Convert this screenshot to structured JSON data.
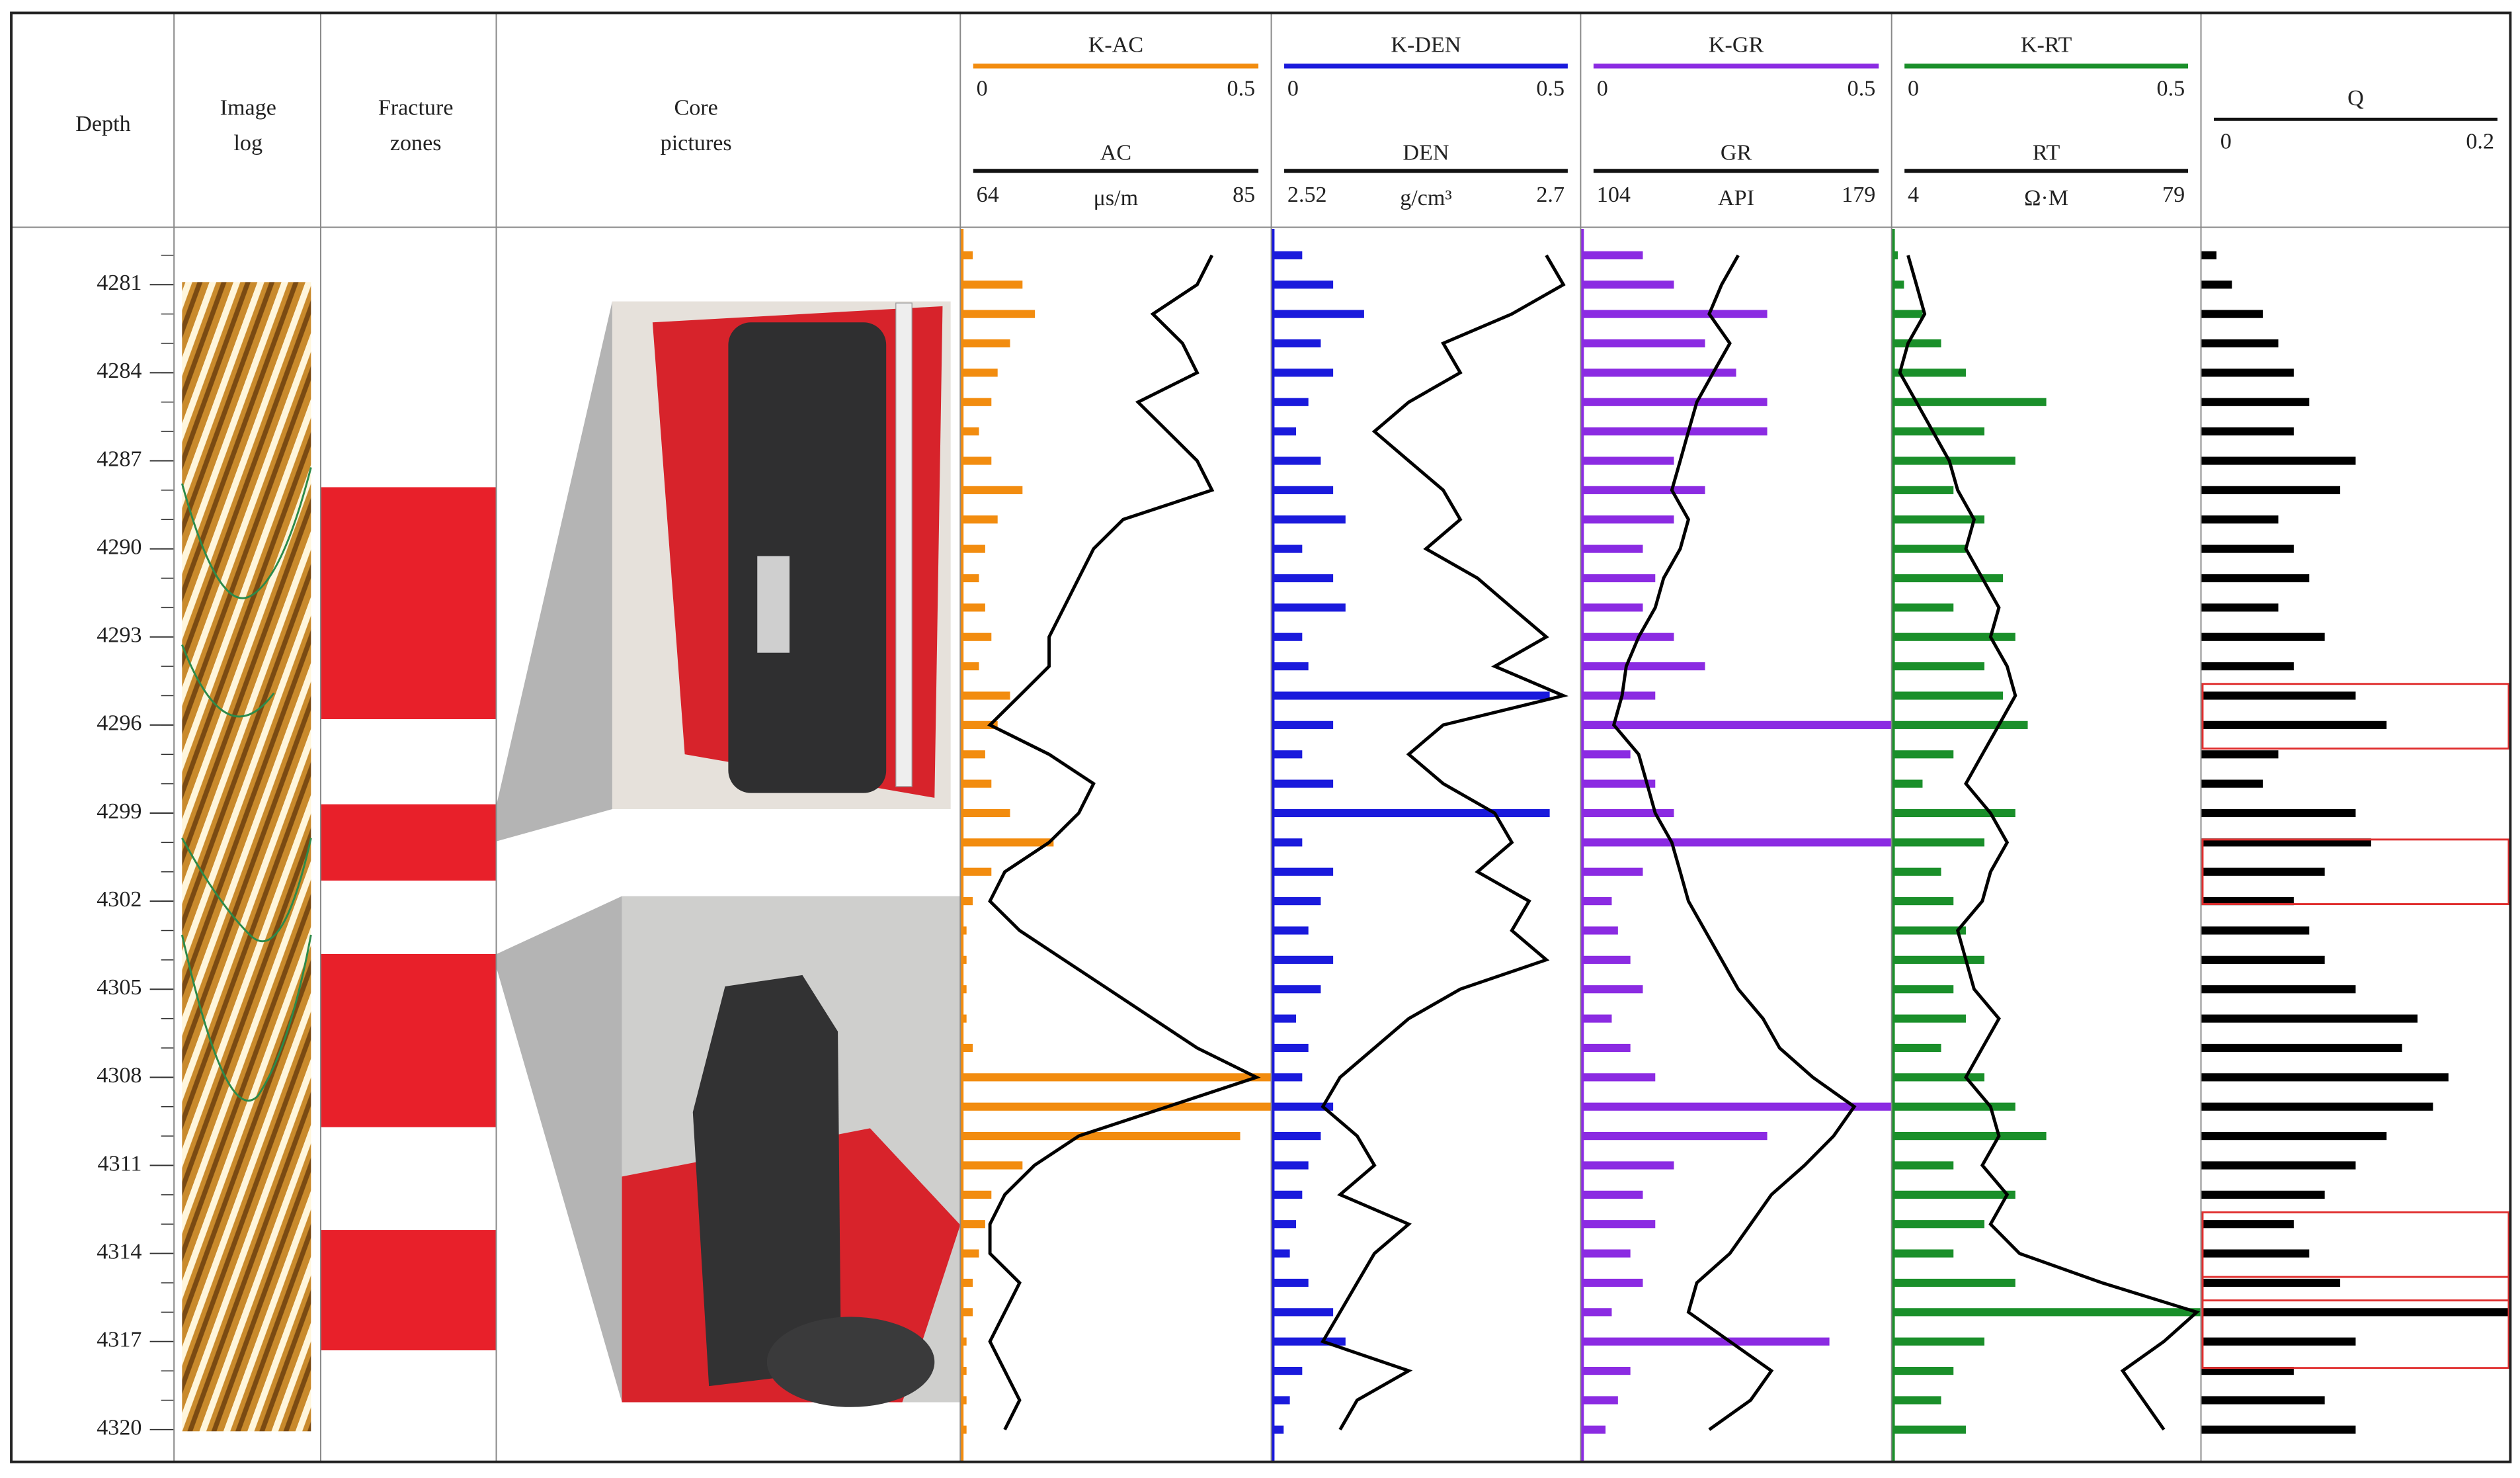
{
  "chart_data": {
    "type": "well_log",
    "column_labels": {
      "depth": "Depth",
      "image_log": [
        "Image",
        "log"
      ],
      "fracture_zones": [
        "Fracture",
        "zones"
      ],
      "core_pictures": [
        "Core",
        "pictures"
      ]
    },
    "ylim": [
      4279.1,
      4321.1
    ],
    "yticks": [
      4281,
      4284,
      4287,
      4290,
      4293,
      4296,
      4299,
      4302,
      4305,
      4308,
      4311,
      4314,
      4317,
      4320
    ],
    "depth": [
      4280,
      4281,
      4282,
      4283,
      4284,
      4285,
      4286,
      4287,
      4288,
      4289,
      4290,
      4291,
      4292,
      4293,
      4294,
      4295,
      4296,
      4297,
      4298,
      4299,
      4300,
      4301,
      4302,
      4303,
      4304,
      4305,
      4306,
      4307,
      4308,
      4309,
      4310,
      4311,
      4312,
      4313,
      4314,
      4315,
      4316,
      4317,
      4318,
      4319,
      4320
    ],
    "fracture_zones": [
      [
        4287.9,
        4295.8
      ],
      [
        4298.7,
        4301.3
      ],
      [
        4303.8,
        4309.7
      ],
      [
        4313.2,
        4317.3
      ]
    ],
    "fracture_color": "#e8202a",
    "tracks": [
      {
        "k_name": "K-AC",
        "k_color": "#f28c0f",
        "k_range": [
          0,
          0.5
        ],
        "k_values": [
          0.02,
          0.1,
          0.12,
          0.08,
          0.06,
          0.05,
          0.03,
          0.05,
          0.1,
          0.06,
          0.04,
          0.03,
          0.04,
          0.05,
          0.03,
          0.08,
          0.06,
          0.04,
          0.05,
          0.08,
          0.15,
          0.05,
          0.02,
          0.01,
          0.01,
          0.01,
          0.01,
          0.02,
          0.5,
          0.5,
          0.45,
          0.1,
          0.05,
          0.04,
          0.03,
          0.02,
          0.02,
          0.01,
          0.01,
          0.01,
          0.01
        ],
        "curve_name": "AC",
        "unit": "μs/m",
        "range": [
          64,
          85
        ],
        "values": [
          81,
          80,
          77,
          79,
          80,
          76,
          78,
          80,
          81,
          75,
          73,
          72,
          71,
          70,
          70,
          68,
          66,
          70,
          73,
          72,
          70,
          67,
          66,
          68,
          71,
          74,
          77,
          80,
          84,
          78,
          72,
          69,
          67,
          66,
          66,
          68,
          67,
          66,
          67,
          68,
          67
        ]
      },
      {
        "k_name": "K-DEN",
        "k_color": "#1a1adc",
        "k_range": [
          0,
          0.5
        ],
        "k_values": [
          0.05,
          0.1,
          0.15,
          0.08,
          0.1,
          0.06,
          0.04,
          0.08,
          0.1,
          0.12,
          0.05,
          0.1,
          0.12,
          0.05,
          0.06,
          0.45,
          0.1,
          0.05,
          0.1,
          0.45,
          0.05,
          0.1,
          0.08,
          0.06,
          0.1,
          0.08,
          0.04,
          0.06,
          0.05,
          0.1,
          0.08,
          0.06,
          0.05,
          0.04,
          0.03,
          0.06,
          0.1,
          0.12,
          0.05,
          0.03,
          0.02
        ],
        "curve_name": "DEN",
        "unit": "g/cm³",
        "range": [
          2.52,
          2.7
        ],
        "values": [
          2.68,
          2.69,
          2.66,
          2.62,
          2.63,
          2.6,
          2.58,
          2.6,
          2.62,
          2.63,
          2.61,
          2.64,
          2.66,
          2.68,
          2.65,
          2.69,
          2.62,
          2.6,
          2.62,
          2.65,
          2.66,
          2.64,
          2.67,
          2.66,
          2.68,
          2.63,
          2.6,
          2.58,
          2.56,
          2.55,
          2.57,
          2.58,
          2.56,
          2.6,
          2.58,
          2.57,
          2.56,
          2.55,
          2.6,
          2.57,
          2.56
        ]
      },
      {
        "k_name": "K-GR",
        "k_color": "#8b2be2",
        "k_range": [
          0,
          0.5
        ],
        "k_values": [
          0.1,
          0.15,
          0.3,
          0.2,
          0.25,
          0.3,
          0.3,
          0.15,
          0.2,
          0.15,
          0.1,
          0.12,
          0.1,
          0.15,
          0.2,
          0.12,
          0.5,
          0.08,
          0.12,
          0.15,
          0.5,
          0.1,
          0.05,
          0.06,
          0.08,
          0.1,
          0.05,
          0.08,
          0.12,
          0.5,
          0.3,
          0.15,
          0.1,
          0.12,
          0.08,
          0.1,
          0.05,
          0.4,
          0.08,
          0.06,
          0.04
        ],
        "curve_name": "GR",
        "unit": "API",
        "range": [
          104,
          179
        ],
        "values": [
          142,
          138,
          135,
          140,
          136,
          132,
          130,
          128,
          126,
          130,
          128,
          124,
          122,
          118,
          115,
          114,
          112,
          118,
          120,
          122,
          126,
          128,
          130,
          134,
          138,
          142,
          148,
          152,
          160,
          170,
          165,
          158,
          150,
          145,
          140,
          132,
          130,
          140,
          150,
          145,
          135
        ]
      },
      {
        "k_name": "K-RT",
        "k_color": "#1a8f2a",
        "k_range": [
          0,
          0.5
        ],
        "k_values": [
          0.01,
          0.02,
          0.05,
          0.08,
          0.12,
          0.25,
          0.15,
          0.2,
          0.1,
          0.15,
          0.12,
          0.18,
          0.1,
          0.2,
          0.15,
          0.18,
          0.22,
          0.1,
          0.05,
          0.2,
          0.15,
          0.08,
          0.1,
          0.12,
          0.15,
          0.1,
          0.12,
          0.08,
          0.15,
          0.2,
          0.25,
          0.1,
          0.2,
          0.15,
          0.1,
          0.2,
          0.5,
          0.15,
          0.1,
          0.08,
          0.12
        ],
        "curve_name": "RT",
        "unit": "Ω·M",
        "range": [
          4,
          79
        ],
        "values": [
          8,
          10,
          12,
          8,
          6,
          10,
          14,
          18,
          20,
          24,
          22,
          26,
          30,
          28,
          32,
          34,
          30,
          26,
          22,
          28,
          32,
          28,
          26,
          20,
          22,
          24,
          30,
          26,
          22,
          28,
          30,
          26,
          32,
          28,
          35,
          55,
          78,
          70,
          60,
          65,
          70
        ]
      }
    ],
    "q_track": {
      "name": "Q",
      "color": "#000000",
      "range": [
        0,
        0.2
      ],
      "values": [
        0.01,
        0.02,
        0.04,
        0.05,
        0.06,
        0.07,
        0.06,
        0.1,
        0.09,
        0.05,
        0.06,
        0.07,
        0.05,
        0.08,
        0.06,
        0.1,
        0.12,
        0.05,
        0.04,
        0.1,
        0.11,
        0.08,
        0.06,
        0.07,
        0.08,
        0.1,
        0.14,
        0.13,
        0.16,
        0.15,
        0.12,
        0.1,
        0.08,
        0.06,
        0.07,
        0.09,
        0.2,
        0.1,
        0.06,
        0.08,
        0.1
      ],
      "highlights": [
        [
          4294.6,
          4296.8
        ],
        [
          4299.9,
          4302.1
        ],
        [
          4312.6,
          4315.6
        ],
        [
          4314.8,
          4317.9
        ]
      ],
      "highlight_color": "#e03030"
    }
  }
}
